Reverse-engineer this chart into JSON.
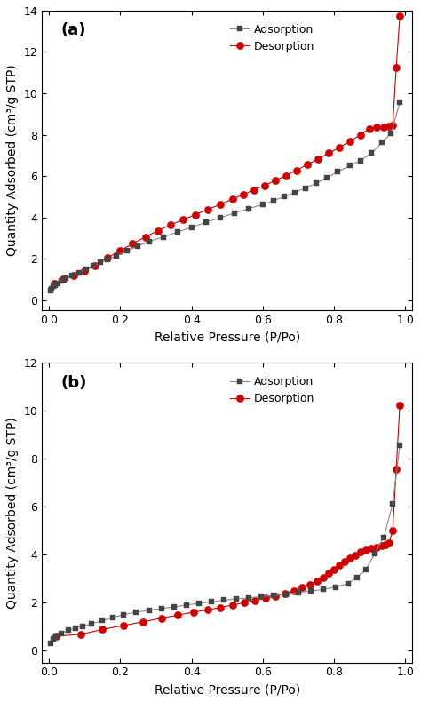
{
  "panel_a": {
    "label": "(a)",
    "ylim": [
      -0.5,
      14
    ],
    "yticks": [
      0,
      2,
      4,
      6,
      8,
      10,
      12,
      14
    ],
    "xlim": [
      -0.02,
      1.02
    ],
    "xticks": [
      0.0,
      0.2,
      0.4,
      0.6,
      0.8,
      1.0
    ],
    "adsorption_x": [
      0.005,
      0.008,
      0.012,
      0.018,
      0.025,
      0.035,
      0.048,
      0.065,
      0.085,
      0.105,
      0.125,
      0.145,
      0.165,
      0.19,
      0.22,
      0.25,
      0.28,
      0.32,
      0.36,
      0.4,
      0.44,
      0.48,
      0.52,
      0.56,
      0.6,
      0.63,
      0.66,
      0.69,
      0.72,
      0.75,
      0.78,
      0.81,
      0.845,
      0.875,
      0.905,
      0.935,
      0.96,
      0.985
    ],
    "adsorption_y": [
      0.45,
      0.55,
      0.65,
      0.72,
      0.82,
      0.95,
      1.05,
      1.18,
      1.32,
      1.5,
      1.65,
      1.82,
      1.95,
      2.15,
      2.38,
      2.62,
      2.82,
      3.05,
      3.28,
      3.52,
      3.75,
      3.98,
      4.2,
      4.42,
      4.62,
      4.8,
      5.0,
      5.2,
      5.42,
      5.65,
      5.9,
      6.2,
      6.5,
      6.75,
      7.1,
      7.62,
      8.05,
      9.55
    ],
    "desorption_x": [
      0.985,
      0.975,
      0.965,
      0.955,
      0.94,
      0.92,
      0.9,
      0.875,
      0.845,
      0.815,
      0.785,
      0.755,
      0.725,
      0.695,
      0.665,
      0.635,
      0.605,
      0.575,
      0.545,
      0.515,
      0.48,
      0.445,
      0.41,
      0.375,
      0.34,
      0.305,
      0.27,
      0.235,
      0.2,
      0.165,
      0.13,
      0.1,
      0.07,
      0.04,
      0.015
    ],
    "desorption_y": [
      13.75,
      11.25,
      8.45,
      8.42,
      8.38,
      8.35,
      8.3,
      8.0,
      7.68,
      7.38,
      7.1,
      6.82,
      6.55,
      6.28,
      6.02,
      5.78,
      5.55,
      5.32,
      5.1,
      4.88,
      4.62,
      4.38,
      4.12,
      3.88,
      3.62,
      3.35,
      3.05,
      2.72,
      2.4,
      2.05,
      1.68,
      1.42,
      1.2,
      1.0,
      0.82
    ]
  },
  "panel_b": {
    "label": "(b)",
    "ylim": [
      -0.5,
      12
    ],
    "yticks": [
      0,
      2,
      4,
      6,
      8,
      10,
      12
    ],
    "xlim": [
      -0.02,
      1.02
    ],
    "xticks": [
      0.0,
      0.2,
      0.4,
      0.6,
      0.8,
      1.0
    ],
    "adsorption_x": [
      0.005,
      0.012,
      0.02,
      0.035,
      0.055,
      0.075,
      0.095,
      0.12,
      0.15,
      0.18,
      0.21,
      0.245,
      0.28,
      0.315,
      0.35,
      0.385,
      0.42,
      0.455,
      0.49,
      0.525,
      0.56,
      0.595,
      0.63,
      0.665,
      0.7,
      0.735,
      0.77,
      0.805,
      0.84,
      0.865,
      0.89,
      0.915,
      0.94,
      0.965,
      0.985
    ],
    "adsorption_y": [
      0.32,
      0.48,
      0.6,
      0.72,
      0.85,
      0.95,
      1.02,
      1.12,
      1.25,
      1.38,
      1.5,
      1.6,
      1.68,
      1.75,
      1.82,
      1.9,
      1.97,
      2.03,
      2.1,
      2.15,
      2.2,
      2.25,
      2.3,
      2.35,
      2.42,
      2.48,
      2.55,
      2.65,
      2.8,
      3.05,
      3.38,
      4.05,
      4.72,
      6.12,
      8.55
    ],
    "desorption_x": [
      0.985,
      0.975,
      0.965,
      0.955,
      0.945,
      0.935,
      0.92,
      0.905,
      0.89,
      0.875,
      0.86,
      0.845,
      0.83,
      0.815,
      0.8,
      0.785,
      0.77,
      0.752,
      0.732,
      0.71,
      0.688,
      0.662,
      0.635,
      0.607,
      0.578,
      0.548,
      0.516,
      0.482,
      0.445,
      0.405,
      0.362,
      0.315,
      0.265,
      0.21,
      0.15,
      0.09,
      0.02
    ],
    "desorption_y": [
      10.25,
      7.58,
      5.02,
      4.5,
      4.42,
      4.38,
      4.32,
      4.28,
      4.2,
      4.12,
      3.98,
      3.85,
      3.7,
      3.55,
      3.38,
      3.22,
      3.05,
      2.9,
      2.75,
      2.62,
      2.5,
      2.38,
      2.28,
      2.18,
      2.08,
      2.0,
      1.9,
      1.8,
      1.7,
      1.6,
      1.48,
      1.35,
      1.2,
      1.05,
      0.88,
      0.68,
      0.6
    ]
  },
  "adsorption_color": "#444444",
  "desorption_color": "#cc0000",
  "line_color_ads": "#888888",
  "line_color_des": "#cc0000",
  "ylabel": "Quantity Adsorbed (cm³/g STP)",
  "xlabel": "Relative Pressure (P/Po)",
  "adsorption_label": "Adsorption",
  "desorption_label": "Desorption",
  "marker_size_ads": 4.5,
  "marker_size_des": 6.0,
  "font_size_label": 10,
  "font_size_tick": 9,
  "font_size_legend": 9,
  "font_size_panel": 13
}
